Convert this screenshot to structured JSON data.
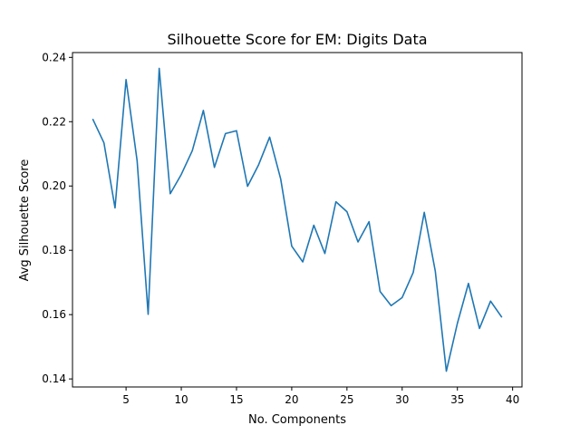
{
  "chart_data": {
    "type": "line",
    "title": "Silhouette Score for EM: Digits Data",
    "xlabel": "No. Components",
    "ylabel": "Avg Silhouette Score",
    "xlim": [
      0.15,
      40.85
    ],
    "ylim": [
      0.1375,
      0.2415
    ],
    "xticks": [
      5,
      10,
      15,
      20,
      25,
      30,
      35,
      40
    ],
    "xtick_labels": [
      "5",
      "10",
      "15",
      "20",
      "25",
      "30",
      "35",
      "40"
    ],
    "yticks": [
      0.14,
      0.16,
      0.18,
      0.2,
      0.22,
      0.24
    ],
    "ytick_labels": [
      "0.14",
      "0.16",
      "0.18",
      "0.20",
      "0.22",
      "0.24"
    ],
    "grid": false,
    "line_color": "#1f77b4",
    "x": [
      2,
      3,
      4,
      5,
      6,
      7,
      8,
      9,
      10,
      11,
      12,
      13,
      14,
      15,
      16,
      17,
      18,
      19,
      20,
      21,
      22,
      23,
      24,
      25,
      26,
      27,
      28,
      29,
      30,
      31,
      32,
      33,
      34,
      35,
      36,
      37,
      38,
      39
    ],
    "series": [
      {
        "values": [
          0.2207,
          0.2134,
          0.1932,
          0.2331,
          0.2079,
          0.1601,
          0.2366,
          0.1976,
          0.2036,
          0.211,
          0.2235,
          0.2058,
          0.2163,
          0.2172,
          0.1999,
          0.2066,
          0.2152,
          0.2022,
          0.1813,
          0.1764,
          0.1878,
          0.179,
          0.1951,
          0.192,
          0.1826,
          0.1889,
          0.1672,
          0.1628,
          0.1653,
          0.1731,
          0.1918,
          0.1735,
          0.1424,
          0.1573,
          0.1697,
          0.1557,
          0.1642,
          0.1593
        ]
      }
    ]
  }
}
